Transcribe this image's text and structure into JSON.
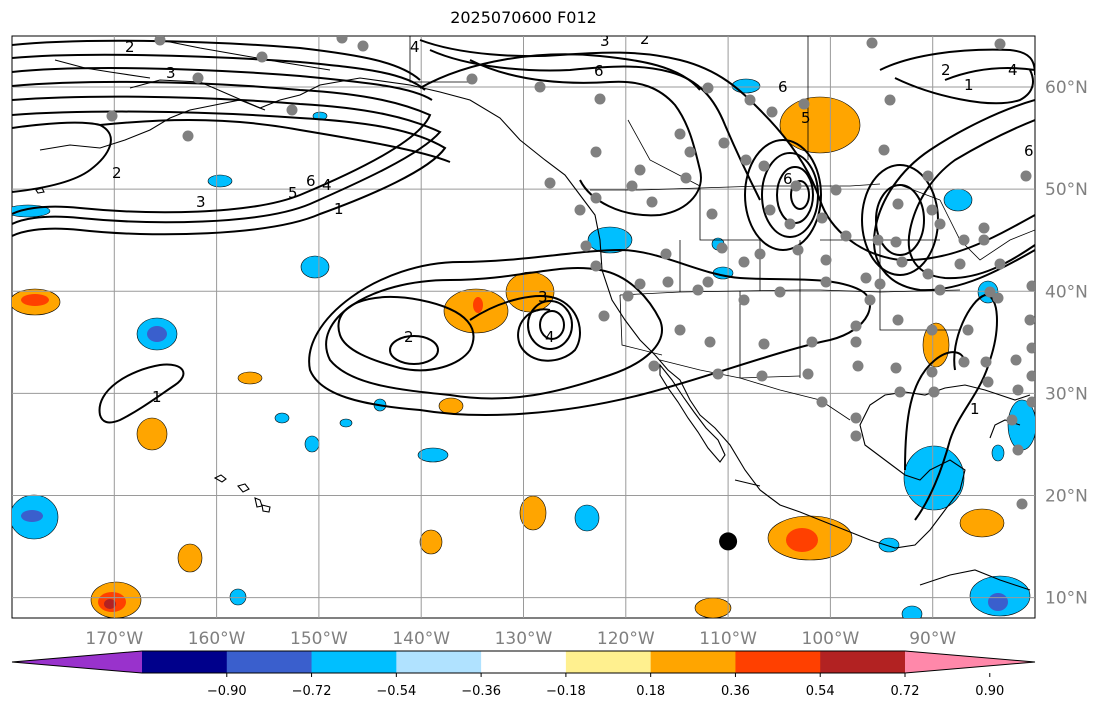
{
  "title": "2025070600 F012",
  "map": {
    "lon_min": -180,
    "lon_max": -80,
    "lat_min": 8,
    "lat_max": 65,
    "lon_ticks": [
      {
        "value": -170,
        "label": "170°W"
      },
      {
        "value": -160,
        "label": "160°W"
      },
      {
        "value": -150,
        "label": "150°W"
      },
      {
        "value": -140,
        "label": "140°W"
      },
      {
        "value": -130,
        "label": "130°W"
      },
      {
        "value": -120,
        "label": "120°W"
      },
      {
        "value": -110,
        "label": "110°W"
      },
      {
        "value": -100,
        "label": "100°W"
      },
      {
        "value": -90,
        "label": "90°W"
      }
    ],
    "lat_ticks": [
      {
        "value": 10,
        "label": "10°N"
      },
      {
        "value": 20,
        "label": "20°N"
      },
      {
        "value": 30,
        "label": "30°N"
      },
      {
        "value": 40,
        "label": "40°N"
      },
      {
        "value": 50,
        "label": "50°N"
      },
      {
        "value": 60,
        "label": "60°N"
      }
    ],
    "contour_labels": [
      "1",
      "2",
      "3",
      "4",
      "5",
      "6"
    ],
    "station_color": "#808080",
    "marker": {
      "lon": -110,
      "lat": 15.5,
      "color": "#000000"
    }
  },
  "colorbar": {
    "colors": [
      "#9932cc",
      "#00008b",
      "#3a5fcd",
      "#00bfff",
      "#b0e2ff",
      "#ffffff",
      "#fff08f",
      "#ffa500",
      "#ff4000",
      "#b22222",
      "#ff88aa"
    ],
    "ticks": [
      "−0.90",
      "−0.72",
      "−0.54",
      "−0.36",
      "−0.18",
      "0.18",
      "0.36",
      "0.54",
      "0.72",
      "0.90"
    ]
  }
}
